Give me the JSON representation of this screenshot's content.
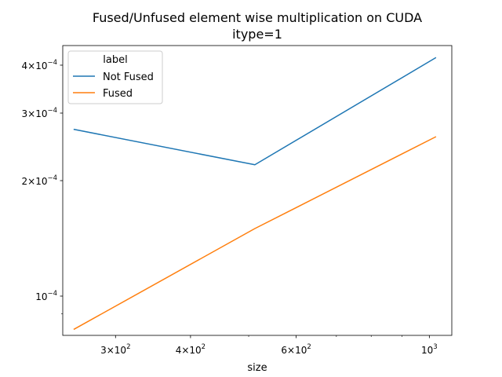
{
  "chart_data": {
    "type": "line",
    "title_line1": "Fused/Unfused element wise multiplication on CUDA",
    "title_line2": "itype=1",
    "xlabel": "size",
    "ylabel": "",
    "x_scale": "log",
    "y_scale": "log",
    "xlim": [
      245,
      1090
    ],
    "ylim": [
      7.9e-05,
      0.00045
    ],
    "grid": false,
    "legend": {
      "title": "label",
      "placement": "top-left"
    },
    "x_ticks": [
      {
        "value": 300,
        "mantissa": "3",
        "exponent": "2"
      },
      {
        "value": 400,
        "mantissa": "4",
        "exponent": "2"
      },
      {
        "value": 600,
        "mantissa": "6",
        "exponent": "2"
      },
      {
        "value": 1000,
        "mantissa": "10",
        "exponent": "3",
        "plain": true
      }
    ],
    "x_minor_ticks": [
      500,
      700,
      800,
      900
    ],
    "y_ticks": [
      {
        "value": 0.0001,
        "mantissa": "10",
        "exponent": "−4",
        "plain": true
      },
      {
        "value": 0.0002,
        "mantissa": "2",
        "exponent": "−4"
      },
      {
        "value": 0.0003,
        "mantissa": "3",
        "exponent": "−4"
      },
      {
        "value": 0.0004,
        "mantissa": "4",
        "exponent": "−4"
      }
    ],
    "y_minor_ticks": [
      9e-05
    ],
    "x": [
      256,
      512,
      1024
    ],
    "series": [
      {
        "name": "Not Fused",
        "color": "#1f77b4",
        "values": [
          0.000272,
          0.00022,
          0.000418
        ]
      },
      {
        "name": "Fused",
        "color": "#ff7f0e",
        "values": [
          8.2e-05,
          0.00015,
          0.00026
        ]
      }
    ]
  }
}
